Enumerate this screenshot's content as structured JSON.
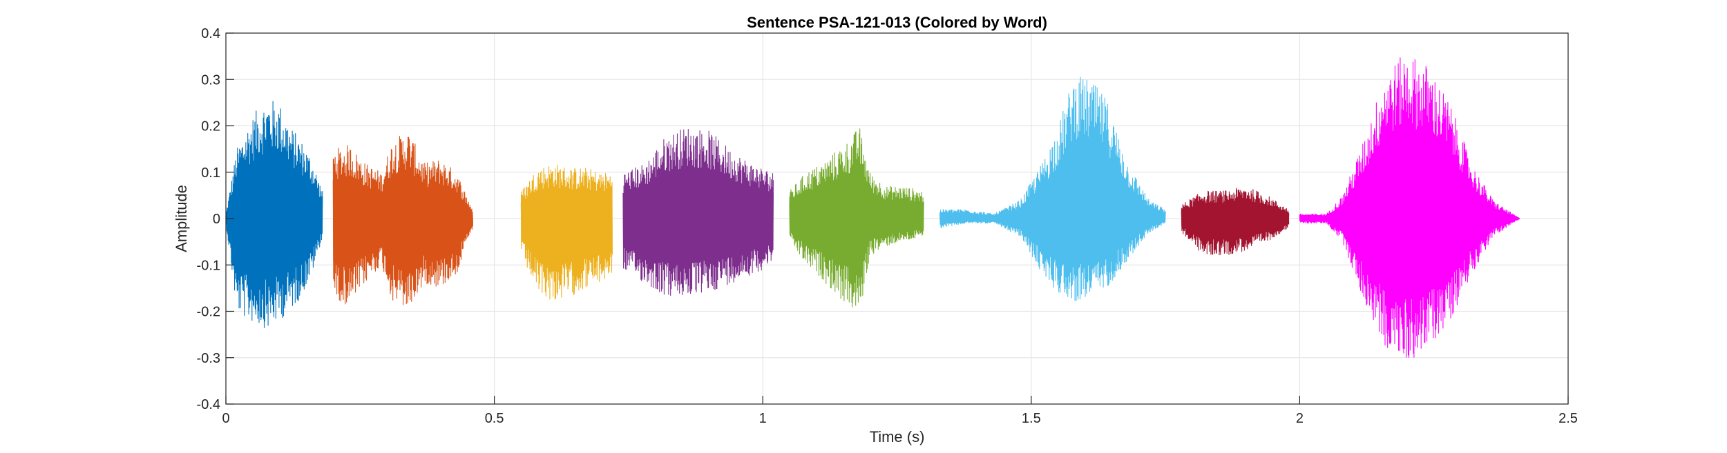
{
  "chart_data": {
    "type": "line",
    "title": "Sentence PSA-121-013 (Colored by Word)",
    "xlabel": "Time (s)",
    "ylabel": "Amplitude",
    "xlim": [
      0,
      2.5
    ],
    "ylim": [
      -0.4,
      0.4
    ],
    "xticks": [
      0,
      0.5,
      1,
      1.5,
      2,
      2.5
    ],
    "xtick_labels": [
      "0",
      "0.5",
      "1",
      "1.5",
      "2",
      "2.5"
    ],
    "yticks": [
      -0.4,
      -0.3,
      -0.2,
      -0.1,
      0,
      0.1,
      0.2,
      0.3,
      0.4
    ],
    "ytick_labels": [
      "-0.4",
      "-0.3",
      "-0.2",
      "-0.1",
      "0",
      "0.1",
      "0.2",
      "0.3",
      "0.4"
    ],
    "grid": true,
    "series": [
      {
        "color": "#0072BD",
        "x": [
          0.0,
          0.02,
          0.04,
          0.06,
          0.08,
          0.1,
          0.12,
          0.14,
          0.16,
          0.18
        ],
        "ymax": [
          0.01,
          0.15,
          0.2,
          0.24,
          0.26,
          0.25,
          0.2,
          0.17,
          0.13,
          0.06
        ],
        "ymin": [
          -0.01,
          -0.2,
          -0.22,
          -0.23,
          -0.24,
          -0.22,
          -0.2,
          -0.17,
          -0.12,
          -0.04
        ]
      },
      {
        "color": "#D95319",
        "x": [
          0.2,
          0.23,
          0.26,
          0.29,
          0.31,
          0.34,
          0.37,
          0.4,
          0.43,
          0.46
        ],
        "ymax": [
          0.15,
          0.16,
          0.12,
          0.1,
          0.17,
          0.19,
          0.12,
          0.13,
          0.1,
          0.02
        ],
        "ymin": [
          -0.17,
          -0.19,
          -0.14,
          -0.1,
          -0.18,
          -0.2,
          -0.14,
          -0.15,
          -0.12,
          -0.02
        ]
      },
      {
        "color": "#EDB120",
        "x": [
          0.55,
          0.58,
          0.61,
          0.64,
          0.67,
          0.7,
          0.72
        ],
        "ymax": [
          0.06,
          0.11,
          0.12,
          0.11,
          0.11,
          0.1,
          0.1
        ],
        "ymin": [
          -0.08,
          -0.16,
          -0.18,
          -0.17,
          -0.15,
          -0.14,
          -0.12
        ]
      },
      {
        "color": "#7E2F8E",
        "x": [
          0.74,
          0.78,
          0.82,
          0.86,
          0.9,
          0.94,
          0.98,
          1.02
        ],
        "ymax": [
          0.1,
          0.12,
          0.18,
          0.2,
          0.19,
          0.15,
          0.12,
          0.1
        ],
        "ymin": [
          -0.11,
          -0.14,
          -0.17,
          -0.17,
          -0.16,
          -0.14,
          -0.12,
          -0.1
        ]
      },
      {
        "color": "#77AC30",
        "x": [
          1.05,
          1.08,
          1.11,
          1.14,
          1.16,
          1.18,
          1.2,
          1.23,
          1.26,
          1.3
        ],
        "ymax": [
          0.06,
          0.1,
          0.12,
          0.15,
          0.17,
          0.2,
          0.1,
          0.07,
          0.07,
          0.06
        ],
        "ymin": [
          -0.05,
          -0.1,
          -0.13,
          -0.17,
          -0.19,
          -0.21,
          -0.08,
          -0.06,
          -0.05,
          -0.04
        ]
      },
      {
        "color": "#4DBEEE",
        "x": [
          1.33,
          1.38,
          1.43,
          1.48,
          1.52,
          1.55,
          1.58,
          1.61,
          1.64,
          1.68,
          1.72,
          1.75
        ],
        "ymax": [
          0.02,
          0.02,
          0.01,
          0.04,
          0.12,
          0.2,
          0.31,
          0.3,
          0.26,
          0.12,
          0.04,
          0.02
        ],
        "ymin": [
          -0.02,
          -0.01,
          -0.01,
          -0.04,
          -0.12,
          -0.16,
          -0.18,
          -0.17,
          -0.15,
          -0.09,
          -0.03,
          -0.01
        ]
      },
      {
        "color": "#A2142F",
        "x": [
          1.78,
          1.82,
          1.86,
          1.9,
          1.94,
          1.98
        ],
        "ymax": [
          0.03,
          0.06,
          0.06,
          0.07,
          0.05,
          0.02
        ],
        "ymin": [
          -0.03,
          -0.08,
          -0.08,
          -0.07,
          -0.05,
          -0.02
        ]
      },
      {
        "color": "#FF00FF",
        "x": [
          2.0,
          2.05,
          2.08,
          2.12,
          2.16,
          2.2,
          2.24,
          2.28,
          2.32,
          2.36,
          2.41
        ],
        "ymax": [
          0.01,
          0.01,
          0.05,
          0.17,
          0.32,
          0.36,
          0.33,
          0.25,
          0.12,
          0.04,
          0.0
        ],
        "ymin": [
          -0.01,
          -0.01,
          -0.05,
          -0.18,
          -0.28,
          -0.31,
          -0.28,
          -0.22,
          -0.12,
          -0.04,
          0.0
        ]
      }
    ]
  }
}
